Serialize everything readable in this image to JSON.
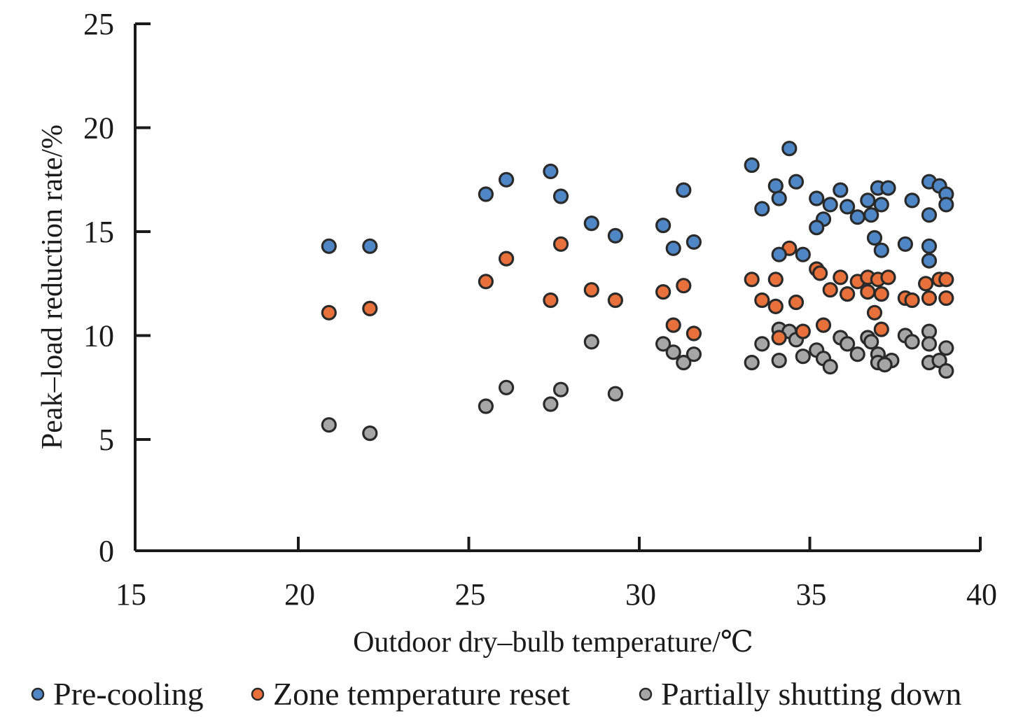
{
  "chart_data": {
    "type": "scatter",
    "title": "",
    "xlabel": "Outdoor dry–bulb temperature/℃",
    "ylabel": "Peak–load reduction rate/%",
    "xlim": [
      15,
      40
    ],
    "ylim": [
      0,
      25
    ],
    "xticks": [
      15,
      20,
      25,
      30,
      35,
      40
    ],
    "yticks": [
      0,
      5,
      10,
      15,
      20,
      25
    ],
    "grid": false,
    "legend_position": "bottom",
    "series": [
      {
        "name": "Pre-cooling",
        "color": "#4f86c6",
        "points": [
          [
            20.9,
            14.3
          ],
          [
            22.1,
            14.3
          ],
          [
            25.5,
            16.8
          ],
          [
            26.1,
            17.5
          ],
          [
            27.4,
            17.9
          ],
          [
            27.7,
            16.7
          ],
          [
            28.6,
            15.4
          ],
          [
            29.3,
            14.8
          ],
          [
            31.3,
            17.0
          ],
          [
            30.7,
            15.3
          ],
          [
            31.0,
            14.2
          ],
          [
            31.6,
            14.5
          ],
          [
            34.4,
            19.0
          ],
          [
            33.3,
            18.2
          ],
          [
            34.0,
            17.2
          ],
          [
            34.6,
            17.4
          ],
          [
            34.1,
            16.6
          ],
          [
            33.6,
            16.1
          ],
          [
            34.1,
            13.9
          ],
          [
            34.8,
            13.9
          ],
          [
            35.2,
            16.6
          ],
          [
            35.6,
            16.3
          ],
          [
            35.4,
            15.6
          ],
          [
            35.2,
            15.2
          ],
          [
            35.9,
            17.0
          ],
          [
            36.1,
            16.2
          ],
          [
            36.4,
            15.7
          ],
          [
            36.7,
            16.5
          ],
          [
            36.8,
            15.8
          ],
          [
            37.0,
            17.1
          ],
          [
            37.3,
            17.1
          ],
          [
            37.1,
            16.3
          ],
          [
            36.9,
            14.7
          ],
          [
            37.1,
            14.1
          ],
          [
            38.0,
            16.5
          ],
          [
            38.5,
            17.4
          ],
          [
            38.8,
            17.2
          ],
          [
            39.0,
            16.8
          ],
          [
            39.0,
            16.3
          ],
          [
            38.5,
            15.8
          ],
          [
            37.8,
            14.4
          ],
          [
            38.5,
            14.3
          ],
          [
            38.5,
            13.6
          ]
        ]
      },
      {
        "name": "Zone temperature reset",
        "color": "#e8703a",
        "points": [
          [
            20.9,
            11.1
          ],
          [
            22.1,
            11.3
          ],
          [
            27.7,
            14.4
          ],
          [
            26.1,
            13.7
          ],
          [
            25.5,
            12.6
          ],
          [
            28.6,
            12.2
          ],
          [
            27.4,
            11.7
          ],
          [
            29.3,
            11.7
          ],
          [
            30.7,
            12.1
          ],
          [
            31.3,
            12.4
          ],
          [
            31.0,
            10.5
          ],
          [
            31.6,
            10.1
          ],
          [
            34.4,
            14.2
          ],
          [
            33.3,
            12.7
          ],
          [
            34.0,
            12.7
          ],
          [
            33.6,
            11.7
          ],
          [
            34.0,
            11.4
          ],
          [
            34.6,
            11.6
          ],
          [
            34.8,
            10.2
          ],
          [
            34.1,
            9.9
          ],
          [
            35.2,
            13.2
          ],
          [
            35.3,
            13.0
          ],
          [
            35.9,
            12.8
          ],
          [
            35.6,
            12.2
          ],
          [
            36.4,
            12.6
          ],
          [
            36.1,
            12.0
          ],
          [
            36.7,
            12.8
          ],
          [
            37.0,
            12.7
          ],
          [
            37.3,
            12.8
          ],
          [
            36.7,
            12.1
          ],
          [
            37.1,
            12.0
          ],
          [
            36.9,
            11.1
          ],
          [
            35.4,
            10.5
          ],
          [
            37.1,
            10.3
          ],
          [
            38.4,
            12.5
          ],
          [
            38.8,
            12.7
          ],
          [
            39.0,
            12.7
          ],
          [
            37.8,
            11.8
          ],
          [
            38.0,
            11.7
          ],
          [
            38.5,
            11.8
          ],
          [
            39.0,
            11.8
          ]
        ]
      },
      {
        "name": "Partially shutting down",
        "color": "#a6a6a6",
        "points": [
          [
            20.9,
            5.7
          ],
          [
            22.1,
            5.3
          ],
          [
            28.6,
            9.7
          ],
          [
            26.1,
            7.5
          ],
          [
            25.5,
            6.6
          ],
          [
            27.7,
            7.4
          ],
          [
            27.4,
            6.7
          ],
          [
            29.3,
            7.2
          ],
          [
            30.7,
            9.6
          ],
          [
            31.0,
            9.2
          ],
          [
            31.3,
            8.7
          ],
          [
            31.6,
            9.1
          ],
          [
            34.1,
            10.3
          ],
          [
            34.4,
            10.2
          ],
          [
            34.6,
            9.8
          ],
          [
            33.6,
            9.6
          ],
          [
            33.3,
            8.7
          ],
          [
            34.1,
            8.8
          ],
          [
            34.8,
            9.0
          ],
          [
            35.2,
            9.3
          ],
          [
            35.4,
            8.9
          ],
          [
            35.6,
            8.5
          ],
          [
            35.9,
            9.9
          ],
          [
            36.1,
            9.6
          ],
          [
            36.4,
            9.1
          ],
          [
            36.7,
            9.9
          ],
          [
            36.8,
            9.7
          ],
          [
            37.0,
            9.1
          ],
          [
            37.0,
            8.7
          ],
          [
            37.4,
            8.8
          ],
          [
            37.2,
            8.6
          ],
          [
            37.8,
            10.0
          ],
          [
            38.0,
            9.7
          ],
          [
            38.5,
            10.2
          ],
          [
            38.5,
            9.6
          ],
          [
            39.0,
            9.4
          ],
          [
            38.5,
            8.7
          ],
          [
            38.8,
            8.8
          ],
          [
            39.0,
            8.3
          ]
        ]
      }
    ]
  }
}
